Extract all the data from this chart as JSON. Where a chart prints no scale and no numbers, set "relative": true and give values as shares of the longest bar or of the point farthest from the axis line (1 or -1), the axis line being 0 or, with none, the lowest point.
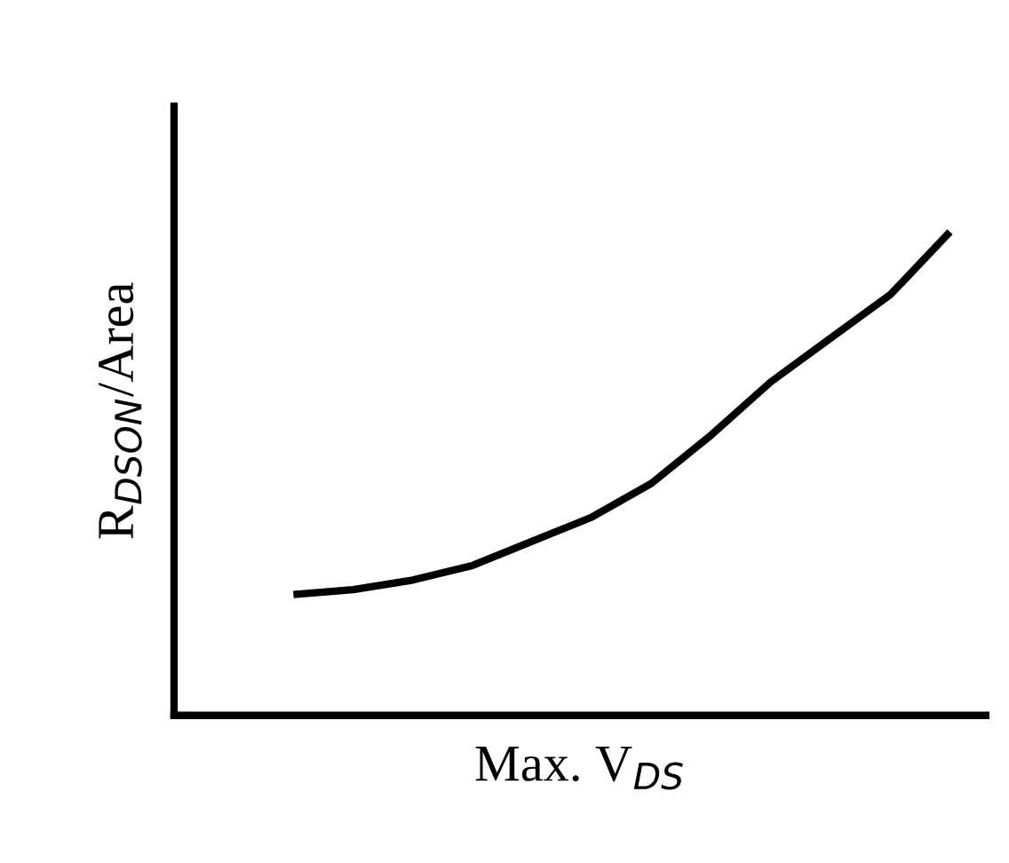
{
  "chart_data": {
    "type": "line",
    "relative": true,
    "xlabel": "Max. V$_{DS}$",
    "ylabel": "R$_{DSON}$/Area",
    "categories": [
      null,
      null,
      null,
      null,
      null,
      null,
      null,
      null,
      null,
      null,
      null,
      null
    ],
    "series": [
      {
        "color": "#000000",
        "values": [
          0.25,
          0.26,
          0.28,
          0.31,
          0.36,
          0.41,
          0.48,
          0.58,
          0.69,
          0.78,
          0.87,
          1.0
        ]
      }
    ],
    "marker": "none",
    "line_style": "solid",
    "grid": false,
    "legend": false,
    "tick_labels": false
  }
}
